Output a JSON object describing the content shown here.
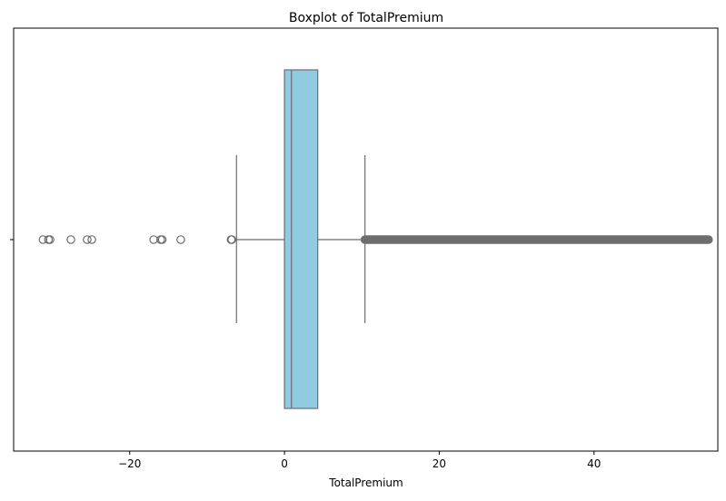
{
  "chart_data": {
    "type": "boxplot",
    "title": "Boxplot of TotalPremium",
    "xlabel": "TotalPremium",
    "ylabel": "",
    "xlim": [
      -35,
      56
    ],
    "xticks": [
      {
        "value": -20,
        "label": "−20"
      },
      {
        "value": 0,
        "label": "0"
      },
      {
        "value": 20,
        "label": "20"
      },
      {
        "value": 40,
        "label": "40"
      }
    ],
    "box": {
      "whisker_low": -6.2,
      "q1": 0.0,
      "median": 0.9,
      "q3": 4.3,
      "whisker_high": 10.4
    },
    "outliers_low": [
      -31.2,
      -30.5,
      -30.3,
      -27.6,
      -25.5,
      -24.9,
      -16.9,
      -16.0,
      -15.8,
      -13.4,
      -6.9,
      -6.8
    ],
    "outliers_high_range": [
      10.4,
      54.8
    ],
    "colors": {
      "box_fill": "#90cbe2",
      "line": "#6d6d6d",
      "outlier": "#6d6d6d",
      "axes": "#000000"
    },
    "grid": false,
    "legend": "none"
  }
}
